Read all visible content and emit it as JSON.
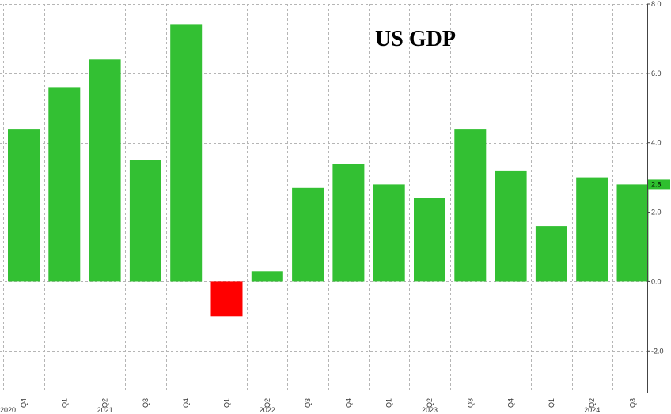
{
  "chart_data": {
    "type": "bar",
    "title": "US GDP",
    "ylim": [
      -3.2,
      8.0
    ],
    "y_ticks": [
      8.0,
      6.0,
      4.0,
      2.0,
      0.0,
      -2.0
    ],
    "y_tick_labels": [
      "8.0",
      "6.0",
      "4.0",
      "2.0",
      "0.0",
      "-2.0"
    ],
    "categories": [
      "Q4",
      "Q1",
      "Q2",
      "Q3",
      "Q4",
      "Q1",
      "Q2",
      "Q3",
      "Q4",
      "Q1",
      "Q2",
      "Q3",
      "Q4",
      "Q1",
      "Q2",
      "Q3"
    ],
    "values": [
      4.4,
      5.6,
      6.4,
      3.5,
      7.4,
      -1.0,
      0.3,
      2.7,
      3.4,
      2.8,
      2.4,
      4.4,
      3.2,
      1.6,
      3.0,
      2.8
    ],
    "year_labels": [
      {
        "label": "2020",
        "category_index": 0
      },
      {
        "label": "2021",
        "category_index": 2
      },
      {
        "label": "2022",
        "category_index": 6
      },
      {
        "label": "2023",
        "category_index": 10
      },
      {
        "label": "2024",
        "category_index": 14
      }
    ],
    "last_value_label": "2.8",
    "grid": true,
    "colors": {
      "positive": "#33c033",
      "negative": "#ff0000",
      "last_value_marker": "#2fbf2f"
    }
  }
}
